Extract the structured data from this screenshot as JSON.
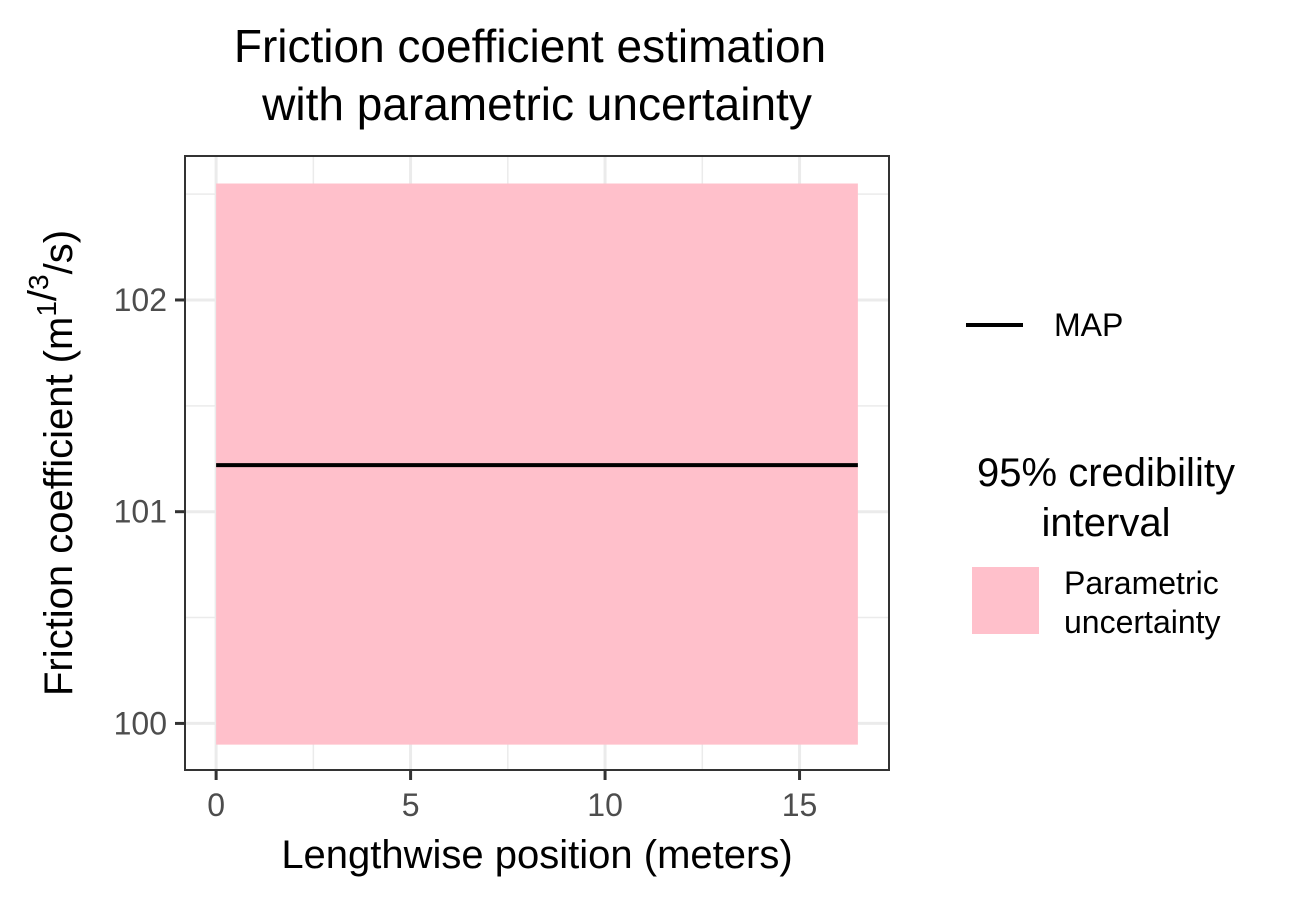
{
  "chart_data": {
    "type": "area",
    "title_line1": "Friction coefficient estimation",
    "title_line2": "with parametric uncertainty",
    "xlabel": "Lengthwise position (meters)",
    "ylabel_main": "Friction coefficient (m",
    "ylabel_sup1": "1",
    "ylabel_slash": "/",
    "ylabel_sup2": "3",
    "ylabel_end": "/s)",
    "xlim": [
      -0.8,
      17.3
    ],
    "ylim": [
      99.78,
      102.68
    ],
    "x_ticks": [
      0,
      5,
      10,
      15
    ],
    "x_tick_labels": [
      "0",
      "5",
      "10",
      "15"
    ],
    "y_ticks": [
      100,
      101,
      102
    ],
    "y_tick_labels": [
      "100",
      "101",
      "102"
    ],
    "grid": true,
    "series": [
      {
        "name": "MAP",
        "kind": "line",
        "color": "#000000",
        "x": [
          0,
          16.5
        ],
        "y": [
          101.22,
          101.22
        ]
      },
      {
        "name": "Parametric uncertainty",
        "kind": "band",
        "color": "#ffc0cb",
        "x": [
          0,
          16.5
        ],
        "lower": [
          99.9,
          99.9
        ],
        "upper": [
          102.55,
          102.55
        ]
      }
    ],
    "legend": {
      "placement": "right",
      "line_label": "MAP",
      "band_title_line1": "95% credibility",
      "band_title_line2": "interval",
      "band_label_line1": "Parametric",
      "band_label_line2": "uncertainty"
    }
  }
}
